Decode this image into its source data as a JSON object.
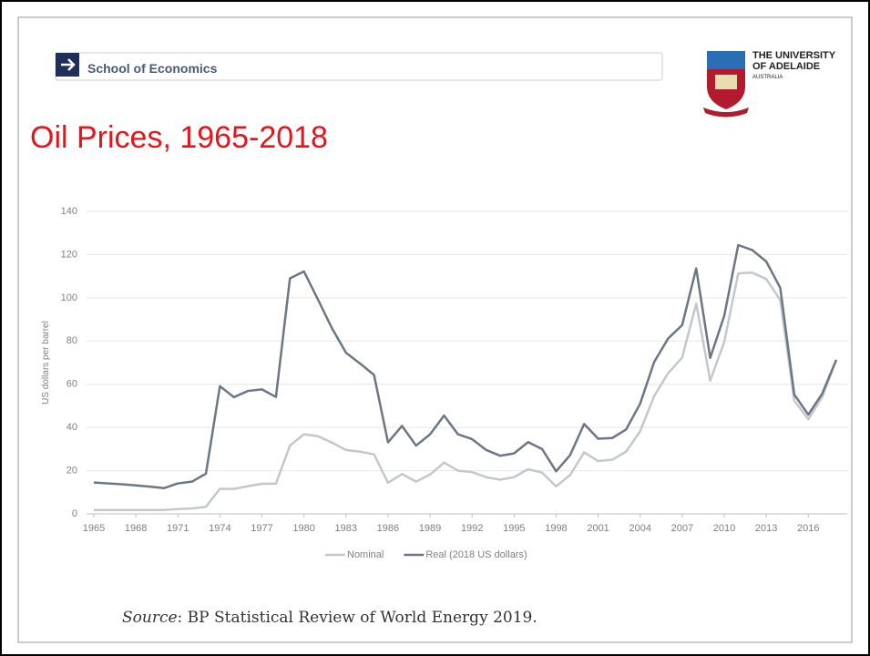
{
  "header": {
    "section": "School of Economics",
    "logo": [
      "THE UNIVERSITY",
      "OF ADELAIDE",
      "AUSTRALIA"
    ]
  },
  "chart_data": {
    "type": "line",
    "title": "Oil Prices, 1965-2018",
    "y_label": "US dollars per barrel",
    "x": [
      1965,
      1966,
      1967,
      1968,
      1969,
      1970,
      1971,
      1972,
      1973,
      1974,
      1975,
      1976,
      1977,
      1978,
      1979,
      1980,
      1981,
      1982,
      1983,
      1984,
      1985,
      1986,
      1987,
      1988,
      1989,
      1990,
      1991,
      1992,
      1993,
      1994,
      1995,
      1996,
      1997,
      1998,
      1999,
      2000,
      2001,
      2002,
      2003,
      2004,
      2005,
      2006,
      2007,
      2008,
      2009,
      2010,
      2011,
      2012,
      2013,
      2014,
      2015,
      2016,
      2017,
      2018
    ],
    "series": [
      {
        "name": "Nominal",
        "color": "#c4c8cc",
        "values": [
          1.8,
          1.8,
          1.8,
          1.8,
          1.8,
          1.8,
          2.24,
          2.48,
          3.29,
          11.58,
          11.53,
          12.8,
          13.92,
          14.02,
          31.61,
          36.83,
          35.93,
          32.97,
          29.55,
          28.78,
          27.56,
          14.43,
          18.44,
          14.92,
          18.23,
          23.73,
          20.0,
          19.32,
          16.97,
          15.82,
          17.02,
          20.67,
          19.09,
          12.72,
          17.97,
          28.5,
          24.44,
          25.02,
          28.83,
          38.27,
          54.52,
          65.14,
          72.39,
          97.26,
          61.67,
          79.5,
          111.26,
          111.67,
          108.66,
          98.95,
          52.39,
          43.73,
          54.19,
          71.31
        ]
      },
      {
        "name": "Real (2018 US dollars)",
        "color": "#6d7784",
        "values": [
          14.5,
          14.1,
          13.7,
          13.2,
          12.6,
          11.9,
          14.1,
          14.9,
          18.6,
          59.1,
          54.0,
          56.9,
          57.6,
          54.1,
          109.0,
          112.2,
          99.2,
          85.9,
          74.6,
          69.6,
          64.3,
          33.1,
          40.7,
          31.6,
          36.8,
          45.5,
          36.8,
          34.6,
          29.6,
          26.9,
          28.0,
          33.2,
          30.0,
          19.7,
          27.2,
          41.6,
          34.8,
          35.1,
          39.1,
          51.0,
          70.3,
          81.2,
          87.4,
          113.6,
          72.2,
          91.6,
          124.4,
          122.1,
          116.8,
          104.6,
          55.2,
          45.9,
          55.7,
          71.3
        ]
      }
    ],
    "xlim": [
      1965,
      2018
    ],
    "xticks": [
      1965,
      1968,
      1971,
      1974,
      1977,
      1980,
      1983,
      1986,
      1989,
      1992,
      1995,
      1998,
      2001,
      2004,
      2007,
      2010,
      2013,
      2016
    ],
    "ylim": [
      0,
      140
    ],
    "yticks": [
      0,
      20,
      40,
      60,
      80,
      100,
      120,
      140
    ],
    "grid": true,
    "legend": "bottom"
  },
  "source": {
    "label": "Source",
    "text": ": BP Statistical Review of World Energy 2019."
  }
}
